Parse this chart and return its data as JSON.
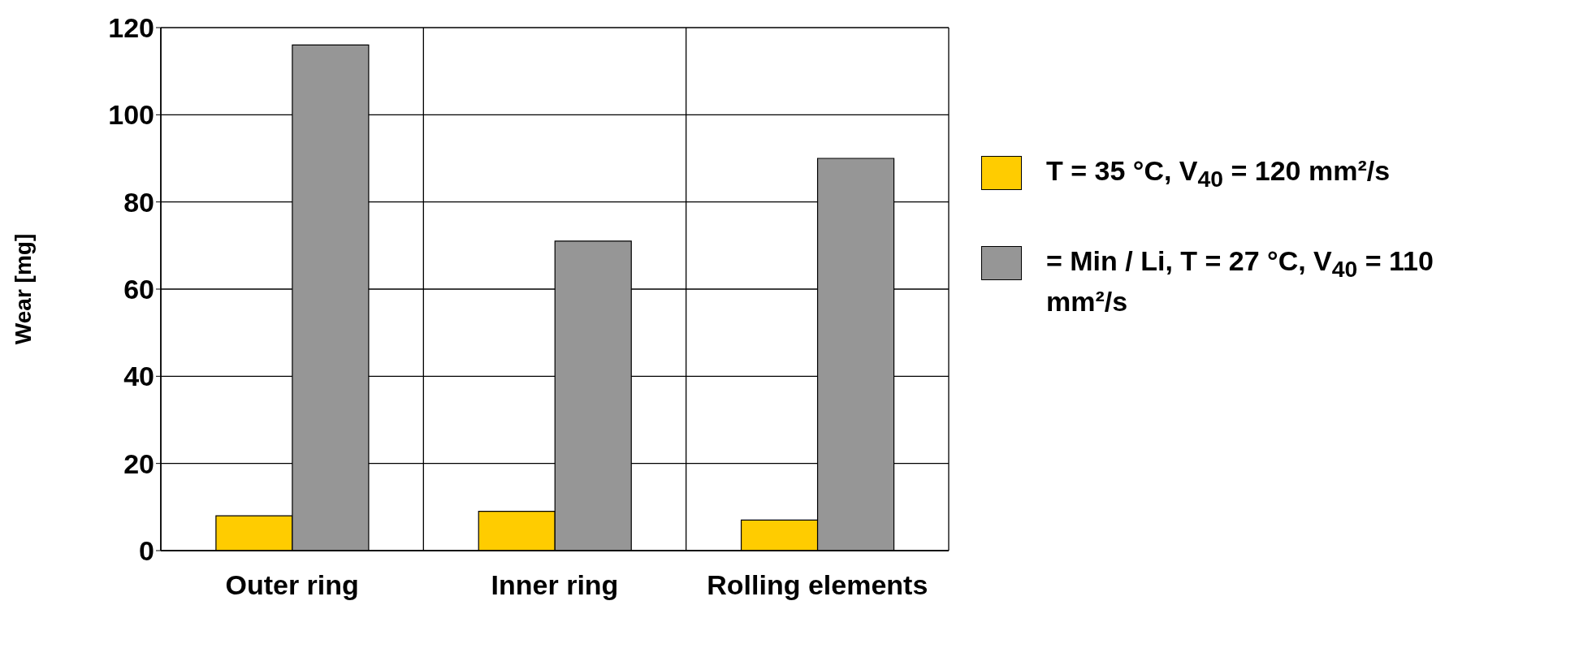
{
  "chart_data": {
    "type": "bar",
    "ylabel": "Wear [mg]",
    "categories": [
      "Outer ring",
      "Inner ring",
      "Rolling elements"
    ],
    "series": [
      {
        "name": "T = 35 °C, V$_{40}$ = 120 mm²/s",
        "color": "#ffcc00",
        "values": [
          8,
          9,
          7
        ]
      },
      {
        "name": "= Min / Li, T = 27 °C, V$_{40}$ = 110 mm²/s",
        "color": "#969696",
        "values": [
          116,
          71,
          90
        ]
      }
    ],
    "ylim": [
      0,
      120
    ],
    "yticks": [
      0,
      20,
      40,
      60,
      80,
      100,
      120
    ],
    "grid": true,
    "legend": "right"
  }
}
